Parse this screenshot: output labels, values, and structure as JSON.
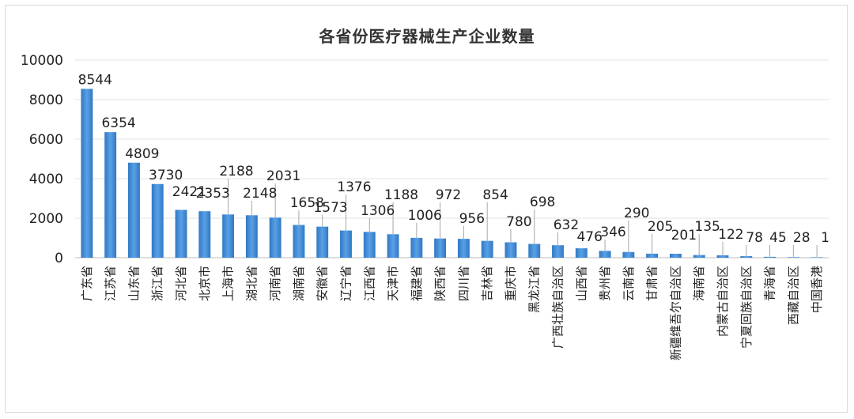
{
  "chart_data": {
    "type": "bar",
    "title": "各省份医疗器械生产企业数量",
    "xlabel": "",
    "ylabel": "",
    "ylim": [
      0,
      10000
    ],
    "yticks": [
      0,
      2000,
      4000,
      6000,
      8000,
      10000
    ],
    "grid": true,
    "color": "#4a90d9",
    "categories": [
      "广东省",
      "江苏省",
      "山东省",
      "浙江省",
      "河北省",
      "北京市",
      "上海市",
      "湖北省",
      "河南省",
      "湖南省",
      "安徽省",
      "辽宁省",
      "江西省",
      "天津市",
      "福建省",
      "陕西省",
      "四川省",
      "吉林省",
      "重庆市",
      "黑龙江省",
      "广西壮族自治区",
      "山西省",
      "贵州省",
      "云南省",
      "甘肃省",
      "新疆维吾尔自治区",
      "海南省",
      "内蒙古自治区",
      "宁夏回族自治区",
      "青海省",
      "西藏自治区",
      "中国香港"
    ],
    "values": [
      8544,
      6354,
      4809,
      3730,
      2421,
      2353,
      2188,
      2148,
      2031,
      1658,
      1573,
      1376,
      1306,
      1188,
      1006,
      972,
      956,
      854,
      780,
      698,
      632,
      476,
      346,
      290,
      205,
      201,
      135,
      122,
      78,
      45,
      28,
      1
    ]
  }
}
